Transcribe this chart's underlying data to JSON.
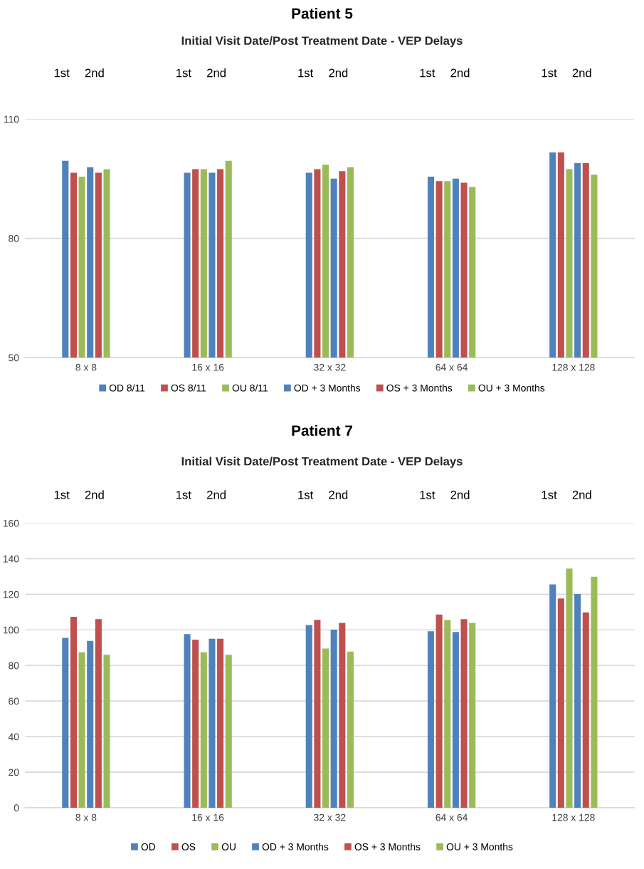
{
  "chart_data": [
    {
      "type": "bar",
      "title": "Patient 5",
      "subtitle": "Initial Visit Date/Post Treatment Date - VEP Delays",
      "categories": [
        "8 x 8",
        "16 x 16",
        "32 x 32",
        "64 x 64",
        "128 x 128"
      ],
      "series": [
        {
          "name": "OD 8/11",
          "color": "#4f81bd",
          "values": [
            99.5,
            96.5,
            96.5,
            95.5,
            101.6
          ]
        },
        {
          "name": "OS 8/11",
          "color": "#c0504d",
          "values": [
            96.5,
            97.4,
            97.4,
            94.4,
            101.6
          ]
        },
        {
          "name": "OU 8/11",
          "color": "#9bbb59",
          "values": [
            95.5,
            97.4,
            98.5,
            94.4,
            97.4
          ]
        },
        {
          "name": "OD + 3 Months",
          "color": "#4f81bd",
          "values": [
            97.9,
            96.5,
            95.0,
            95.0,
            98.9
          ]
        },
        {
          "name": "OS + 3 Months",
          "color": "#c0504d",
          "values": [
            96.5,
            97.4,
            96.9,
            94.0,
            98.9
          ]
        },
        {
          "name": "OU + 3 Months",
          "color": "#9bbb59",
          "values": [
            97.4,
            99.5,
            97.9,
            92.9,
            96.0
          ]
        }
      ],
      "ylim": [
        50,
        110
      ],
      "yticks": [
        50,
        80,
        110
      ],
      "grid": "y",
      "legend": "bottom",
      "annotations": [
        "1st",
        "2nd",
        "1st",
        "2nd",
        "1st",
        "2nd",
        "1st",
        "2nd",
        "1st",
        "2nd"
      ]
    },
    {
      "type": "bar",
      "title": "Patient 7",
      "subtitle": "Initial Visit Date/Post Treatment Date - VEP Delays",
      "categories": [
        "8 x 8",
        "16 x 16",
        "32 x 32",
        "64 x 64",
        "128 x 128"
      ],
      "series": [
        {
          "name": "OD",
          "color": "#4f81bd",
          "values": [
            95.5,
            97.6,
            102.7,
            99.2,
            125.5
          ]
        },
        {
          "name": "OS",
          "color": "#c0504d",
          "values": [
            107.3,
            94.5,
            105.6,
            108.6,
            117.6
          ]
        },
        {
          "name": "OU",
          "color": "#9bbb59",
          "values": [
            87.4,
            87.4,
            89.5,
            105.6,
            134.4
          ]
        },
        {
          "name": "OD + 3 Months",
          "color": "#4f81bd",
          "values": [
            93.8,
            95.0,
            100.1,
            98.8,
            120.1
          ]
        },
        {
          "name": "OS + 3 Months",
          "color": "#c0504d",
          "values": [
            106.0,
            95.0,
            103.9,
            106.0,
            109.8
          ]
        },
        {
          "name": "OU + 3 Months",
          "color": "#9bbb59",
          "values": [
            86.0,
            86.0,
            87.8,
            103.9,
            129.8
          ]
        }
      ],
      "ylim": [
        0,
        160
      ],
      "yticks": [
        0,
        20,
        40,
        60,
        80,
        100,
        120,
        140,
        160
      ],
      "grid": "y",
      "legend": "bottom",
      "annotations": [
        "1st",
        "2nd",
        "1st",
        "2nd",
        "1st",
        "2nd",
        "1st",
        "2nd",
        "1st",
        "2nd"
      ]
    }
  ]
}
